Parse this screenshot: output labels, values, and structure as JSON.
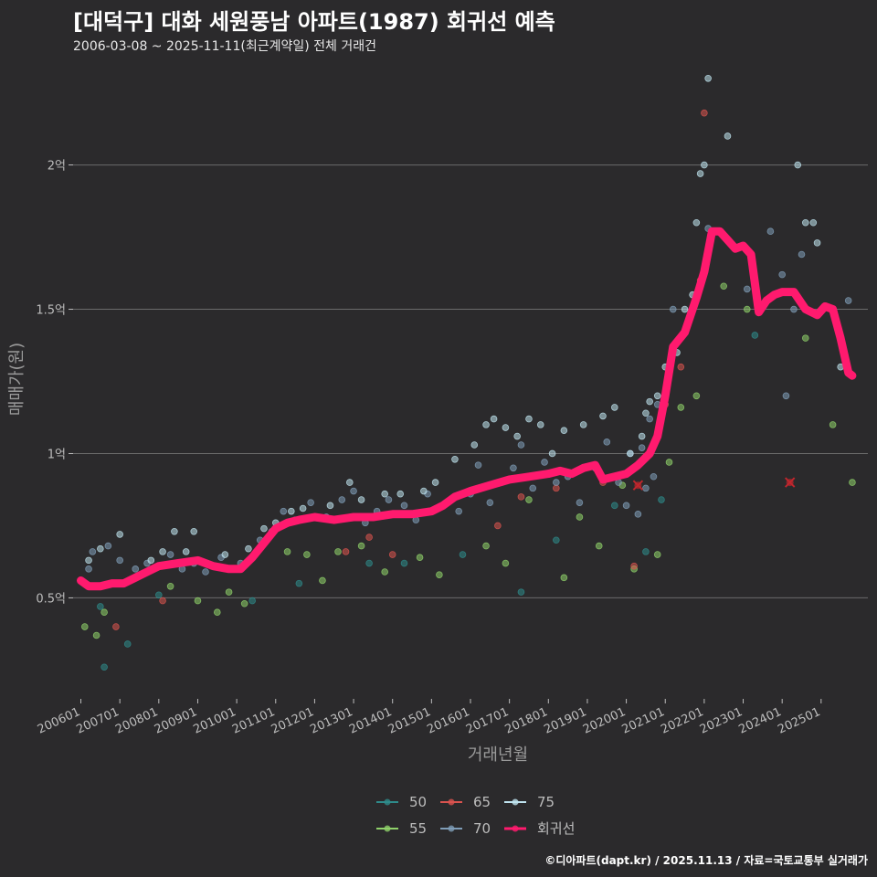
{
  "header": {
    "title": "[대덕구] 대화 세원풍남 아파트(1987) 회귀선 예측",
    "subtitle": "2006-03-08 ~ 2025-11-11(최근계약일) 전체 거래건"
  },
  "footer": {
    "credit": "©디아파트(dapt.kr) / 2025.11.13 / 자료=국토교통부 실거래가"
  },
  "colors": {
    "background": "#2b2a2c",
    "grid": "#6b6b6b",
    "regression": "#ff1a6e",
    "cancelled": "#c0262d",
    "area_50": "#2e8b8b",
    "area_55": "#8fd16a",
    "area_65": "#d9534f",
    "area_70": "#7f9db8",
    "area_75": "#bfe3ef"
  },
  "chart_data": {
    "type": "scatter",
    "xlabel": "거래년월",
    "ylabel": "매매가(원)",
    "ylim": [
      0.15,
      2.35
    ],
    "xlim": [
      2005.8,
      2026.2
    ],
    "y_ticks": [
      {
        "value": 0.5,
        "label": "0.5억"
      },
      {
        "value": 1.0,
        "label": "1억"
      },
      {
        "value": 1.5,
        "label": "1.5억"
      },
      {
        "value": 2.0,
        "label": "2억"
      }
    ],
    "x_ticks": [
      {
        "value": 2006.0,
        "label": "200601"
      },
      {
        "value": 2007.0,
        "label": "200701"
      },
      {
        "value": 2008.0,
        "label": "200801"
      },
      {
        "value": 2009.0,
        "label": "200901"
      },
      {
        "value": 2010.0,
        "label": "201001"
      },
      {
        "value": 2011.0,
        "label": "201101"
      },
      {
        "value": 2012.0,
        "label": "201201"
      },
      {
        "value": 2013.0,
        "label": "201301"
      },
      {
        "value": 2014.0,
        "label": "201401"
      },
      {
        "value": 2015.0,
        "label": "201501"
      },
      {
        "value": 2016.0,
        "label": "201601"
      },
      {
        "value": 2017.0,
        "label": "201701"
      },
      {
        "value": 2018.0,
        "label": "201801"
      },
      {
        "value": 2019.0,
        "label": "201901"
      },
      {
        "value": 2020.0,
        "label": "202001"
      },
      {
        "value": 2021.0,
        "label": "202101"
      },
      {
        "value": 2022.0,
        "label": "202201"
      },
      {
        "value": 2023.0,
        "label": "202301"
      },
      {
        "value": 2024.0,
        "label": "202401"
      },
      {
        "value": 2025.0,
        "label": "202501"
      }
    ],
    "legend": [
      {
        "name": "50",
        "color": "#2e8b8b"
      },
      {
        "name": "55",
        "color": "#8fd16a"
      },
      {
        "name": "65",
        "color": "#d9534f"
      },
      {
        "name": "70",
        "color": "#7f9db8"
      },
      {
        "name": "75",
        "color": "#bfe3ef"
      },
      {
        "name": "회귀선",
        "color": "#ff1a6e"
      }
    ],
    "series": [
      {
        "name": "50",
        "color": "#2e8b8b",
        "points": [
          [
            2006.5,
            0.47
          ],
          [
            2006.6,
            0.26
          ],
          [
            2007.2,
            0.34
          ],
          [
            2008.0,
            0.51
          ],
          [
            2010.4,
            0.49
          ],
          [
            2011.6,
            0.55
          ],
          [
            2013.4,
            0.62
          ],
          [
            2014.3,
            0.62
          ],
          [
            2015.8,
            0.65
          ],
          [
            2017.3,
            0.52
          ],
          [
            2018.2,
            0.7
          ],
          [
            2019.7,
            0.82
          ],
          [
            2020.5,
            0.66
          ],
          [
            2020.9,
            0.84
          ],
          [
            2023.3,
            1.41
          ]
        ]
      },
      {
        "name": "55",
        "color": "#8fd16a",
        "points": [
          [
            2006.1,
            0.4
          ],
          [
            2006.4,
            0.37
          ],
          [
            2006.6,
            0.45
          ],
          [
            2008.3,
            0.54
          ],
          [
            2009.0,
            0.49
          ],
          [
            2009.5,
            0.45
          ],
          [
            2009.8,
            0.52
          ],
          [
            2010.2,
            0.48
          ],
          [
            2011.3,
            0.66
          ],
          [
            2011.8,
            0.65
          ],
          [
            2012.2,
            0.56
          ],
          [
            2012.6,
            0.66
          ],
          [
            2013.2,
            0.68
          ],
          [
            2013.8,
            0.59
          ],
          [
            2014.7,
            0.64
          ],
          [
            2015.2,
            0.58
          ],
          [
            2016.4,
            0.68
          ],
          [
            2016.9,
            0.62
          ],
          [
            2017.5,
            0.84
          ],
          [
            2018.4,
            0.57
          ],
          [
            2018.8,
            0.78
          ],
          [
            2019.3,
            0.68
          ],
          [
            2019.9,
            0.89
          ],
          [
            2020.2,
            0.6
          ],
          [
            2020.8,
            0.65
          ],
          [
            2021.1,
            0.97
          ],
          [
            2021.4,
            1.16
          ],
          [
            2021.8,
            1.2
          ],
          [
            2022.5,
            1.58
          ],
          [
            2023.1,
            1.5
          ],
          [
            2024.6,
            1.4
          ],
          [
            2025.3,
            1.1
          ],
          [
            2025.8,
            0.9
          ]
        ]
      },
      {
        "name": "65",
        "color": "#d9534f",
        "points": [
          [
            2006.9,
            0.4
          ],
          [
            2008.1,
            0.49
          ],
          [
            2010.0,
            0.6
          ],
          [
            2012.8,
            0.66
          ],
          [
            2013.4,
            0.71
          ],
          [
            2014.0,
            0.65
          ],
          [
            2016.7,
            0.75
          ],
          [
            2017.3,
            0.85
          ],
          [
            2018.2,
            0.88
          ],
          [
            2019.4,
            0.9
          ],
          [
            2020.2,
            0.61
          ],
          [
            2021.0,
            1.17
          ],
          [
            2021.4,
            1.3
          ],
          [
            2021.9,
            1.6
          ],
          [
            2022.0,
            2.18
          ]
        ]
      },
      {
        "name": "70",
        "color": "#7f9db8",
        "points": [
          [
            2006.2,
            0.6
          ],
          [
            2006.3,
            0.66
          ],
          [
            2006.7,
            0.68
          ],
          [
            2007.0,
            0.63
          ],
          [
            2007.4,
            0.6
          ],
          [
            2007.7,
            0.62
          ],
          [
            2008.3,
            0.65
          ],
          [
            2008.6,
            0.6
          ],
          [
            2008.9,
            0.62
          ],
          [
            2009.2,
            0.59
          ],
          [
            2009.6,
            0.64
          ],
          [
            2010.1,
            0.62
          ],
          [
            2010.6,
            0.7
          ],
          [
            2010.9,
            0.73
          ],
          [
            2011.2,
            0.8
          ],
          [
            2011.5,
            0.77
          ],
          [
            2011.9,
            0.83
          ],
          [
            2012.3,
            0.78
          ],
          [
            2012.7,
            0.84
          ],
          [
            2013.0,
            0.87
          ],
          [
            2013.3,
            0.76
          ],
          [
            2013.6,
            0.8
          ],
          [
            2013.9,
            0.84
          ],
          [
            2014.3,
            0.82
          ],
          [
            2014.6,
            0.77
          ],
          [
            2014.9,
            0.86
          ],
          [
            2015.3,
            0.82
          ],
          [
            2015.7,
            0.8
          ],
          [
            2016.0,
            0.86
          ],
          [
            2016.2,
            0.96
          ],
          [
            2016.5,
            0.83
          ],
          [
            2016.8,
            0.9
          ],
          [
            2017.1,
            0.95
          ],
          [
            2017.3,
            1.03
          ],
          [
            2017.6,
            0.88
          ],
          [
            2017.9,
            0.97
          ],
          [
            2018.2,
            0.9
          ],
          [
            2018.5,
            0.92
          ],
          [
            2018.8,
            0.83
          ],
          [
            2019.2,
            0.95
          ],
          [
            2019.5,
            1.04
          ],
          [
            2019.8,
            0.9
          ],
          [
            2020.0,
            0.82
          ],
          [
            2020.1,
            1.0
          ],
          [
            2020.3,
            0.79
          ],
          [
            2020.4,
            1.02
          ],
          [
            2020.5,
            0.88
          ],
          [
            2020.6,
            1.12
          ],
          [
            2020.7,
            0.92
          ],
          [
            2020.8,
            1.17
          ],
          [
            2021.0,
            1.2
          ],
          [
            2021.2,
            1.5
          ],
          [
            2022.1,
            1.78
          ],
          [
            2023.1,
            1.57
          ],
          [
            2023.7,
            1.77
          ],
          [
            2024.0,
            1.62
          ],
          [
            2024.1,
            1.2
          ],
          [
            2024.3,
            1.5
          ],
          [
            2024.5,
            1.69
          ],
          [
            2025.7,
            1.53
          ]
        ]
      },
      {
        "name": "75",
        "color": "#bfe3ef",
        "points": [
          [
            2006.2,
            0.63
          ],
          [
            2006.5,
            0.67
          ],
          [
            2007.0,
            0.72
          ],
          [
            2007.8,
            0.63
          ],
          [
            2008.1,
            0.66
          ],
          [
            2008.4,
            0.73
          ],
          [
            2008.7,
            0.66
          ],
          [
            2008.9,
            0.73
          ],
          [
            2009.7,
            0.65
          ],
          [
            2010.3,
            0.67
          ],
          [
            2010.7,
            0.74
          ],
          [
            2011.0,
            0.76
          ],
          [
            2011.4,
            0.8
          ],
          [
            2011.7,
            0.81
          ],
          [
            2012.4,
            0.82
          ],
          [
            2012.9,
            0.9
          ],
          [
            2013.2,
            0.84
          ],
          [
            2013.8,
            0.86
          ],
          [
            2014.2,
            0.86
          ],
          [
            2014.8,
            0.87
          ],
          [
            2015.1,
            0.9
          ],
          [
            2015.6,
            0.98
          ],
          [
            2016.1,
            1.03
          ],
          [
            2016.4,
            1.1
          ],
          [
            2016.6,
            1.12
          ],
          [
            2016.9,
            1.09
          ],
          [
            2017.2,
            1.06
          ],
          [
            2017.5,
            1.12
          ],
          [
            2017.8,
            1.1
          ],
          [
            2018.1,
            1.0
          ],
          [
            2018.4,
            1.08
          ],
          [
            2018.9,
            1.1
          ],
          [
            2019.4,
            1.13
          ],
          [
            2019.7,
            1.16
          ],
          [
            2020.1,
            1.0
          ],
          [
            2020.4,
            1.06
          ],
          [
            2020.5,
            1.14
          ],
          [
            2020.6,
            1.18
          ],
          [
            2020.8,
            1.2
          ],
          [
            2021.0,
            1.3
          ],
          [
            2021.3,
            1.35
          ],
          [
            2021.5,
            1.5
          ],
          [
            2021.7,
            1.55
          ],
          [
            2021.8,
            1.8
          ],
          [
            2021.9,
            1.97
          ],
          [
            2022.0,
            2.0
          ],
          [
            2022.1,
            2.3
          ],
          [
            2022.6,
            2.1
          ],
          [
            2024.4,
            2.0
          ],
          [
            2024.6,
            1.8
          ],
          [
            2024.8,
            1.8
          ],
          [
            2024.9,
            1.73
          ],
          [
            2025.5,
            1.3
          ]
        ]
      }
    ],
    "cancelled_points": [
      [
        2020.3,
        0.89
      ],
      [
        2024.2,
        0.9
      ]
    ],
    "regression": [
      [
        2006.0,
        0.56
      ],
      [
        2006.2,
        0.54
      ],
      [
        2006.5,
        0.54
      ],
      [
        2006.8,
        0.55
      ],
      [
        2007.1,
        0.55
      ],
      [
        2007.4,
        0.57
      ],
      [
        2007.7,
        0.59
      ],
      [
        2008.0,
        0.61
      ],
      [
        2008.5,
        0.62
      ],
      [
        2009.0,
        0.63
      ],
      [
        2009.4,
        0.61
      ],
      [
        2009.8,
        0.6
      ],
      [
        2010.1,
        0.6
      ],
      [
        2010.4,
        0.64
      ],
      [
        2010.7,
        0.69
      ],
      [
        2011.0,
        0.74
      ],
      [
        2011.3,
        0.76
      ],
      [
        2011.6,
        0.77
      ],
      [
        2012.0,
        0.78
      ],
      [
        2012.5,
        0.77
      ],
      [
        2013.0,
        0.78
      ],
      [
        2013.5,
        0.78
      ],
      [
        2014.0,
        0.79
      ],
      [
        2014.5,
        0.79
      ],
      [
        2015.0,
        0.8
      ],
      [
        2015.3,
        0.82
      ],
      [
        2015.6,
        0.85
      ],
      [
        2016.0,
        0.87
      ],
      [
        2016.5,
        0.89
      ],
      [
        2017.0,
        0.91
      ],
      [
        2017.5,
        0.92
      ],
      [
        2018.0,
        0.93
      ],
      [
        2018.3,
        0.94
      ],
      [
        2018.6,
        0.93
      ],
      [
        2018.9,
        0.95
      ],
      [
        2019.2,
        0.96
      ],
      [
        2019.4,
        0.91
      ],
      [
        2019.7,
        0.92
      ],
      [
        2020.0,
        0.93
      ],
      [
        2020.3,
        0.96
      ],
      [
        2020.6,
        1.0
      ],
      [
        2020.8,
        1.06
      ],
      [
        2021.0,
        1.2
      ],
      [
        2021.2,
        1.37
      ],
      [
        2021.5,
        1.42
      ],
      [
        2021.8,
        1.54
      ],
      [
        2022.0,
        1.63
      ],
      [
        2022.2,
        1.77
      ],
      [
        2022.4,
        1.77
      ],
      [
        2022.6,
        1.74
      ],
      [
        2022.8,
        1.71
      ],
      [
        2023.0,
        1.72
      ],
      [
        2023.2,
        1.69
      ],
      [
        2023.4,
        1.49
      ],
      [
        2023.6,
        1.53
      ],
      [
        2023.8,
        1.55
      ],
      [
        2024.0,
        1.56
      ],
      [
        2024.3,
        1.56
      ],
      [
        2024.6,
        1.5
      ],
      [
        2024.9,
        1.48
      ],
      [
        2025.1,
        1.51
      ],
      [
        2025.3,
        1.5
      ],
      [
        2025.5,
        1.4
      ],
      [
        2025.7,
        1.28
      ],
      [
        2025.8,
        1.27
      ]
    ]
  }
}
